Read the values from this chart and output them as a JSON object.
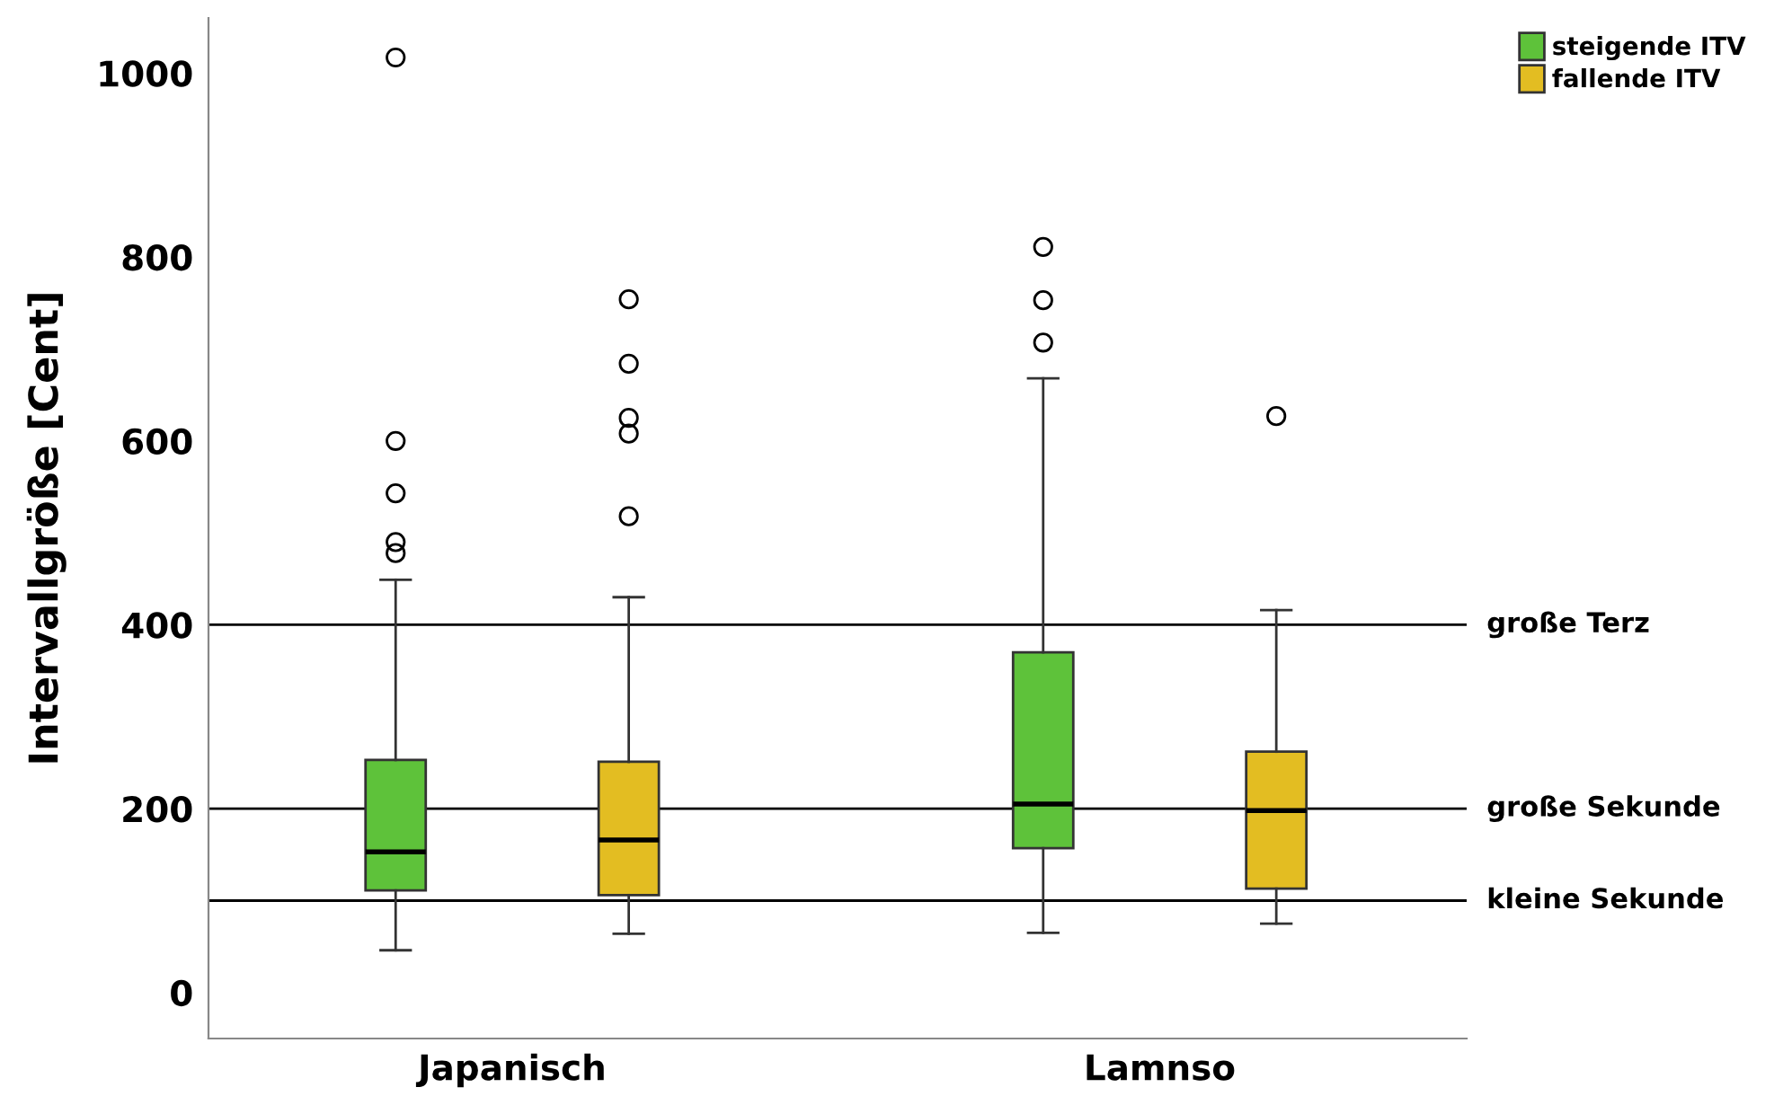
{
  "chart_data": {
    "type": "box",
    "ylabel": "Intervallgröße [Cent]",
    "categories": [
      "Japanisch",
      "Lamnso"
    ],
    "ylim": [
      -50,
      1060
    ],
    "yticks": [
      0,
      200,
      400,
      600,
      800,
      1000
    ],
    "legend": "top right",
    "grid": false,
    "series": [
      {
        "name": "steigende ITV",
        "color": "#5ec23a",
        "boxes": [
          {
            "low": 46,
            "q1": 111,
            "median": 153,
            "q3": 253,
            "high": 449,
            "outliers": [
              478,
              490,
              543,
              600,
              1017
            ]
          },
          {
            "low": 65,
            "q1": 157,
            "median": 205,
            "q3": 370,
            "high": 668,
            "outliers": [
              707,
              753,
              811
            ]
          }
        ]
      },
      {
        "name": "fallende ITV",
        "color": "#e3bd22",
        "boxes": [
          {
            "low": 64,
            "q1": 106,
            "median": 166,
            "q3": 251,
            "high": 430,
            "outliers": [
              518,
              608,
              625,
              684,
              754
            ]
          },
          {
            "low": 75,
            "q1": 113,
            "median": 198,
            "q3": 262,
            "high": 416,
            "outliers": [
              627
            ]
          }
        ]
      }
    ],
    "ref_lines": [
      {
        "axis": "y",
        "value": 400,
        "label": "große Terz",
        "color": "#000000"
      },
      {
        "axis": "y",
        "value": 200,
        "label": "große Sekunde",
        "color": "#000000"
      },
      {
        "axis": "y",
        "value": 100,
        "label": "kleine Sekunde",
        "color": "#000000"
      }
    ]
  }
}
